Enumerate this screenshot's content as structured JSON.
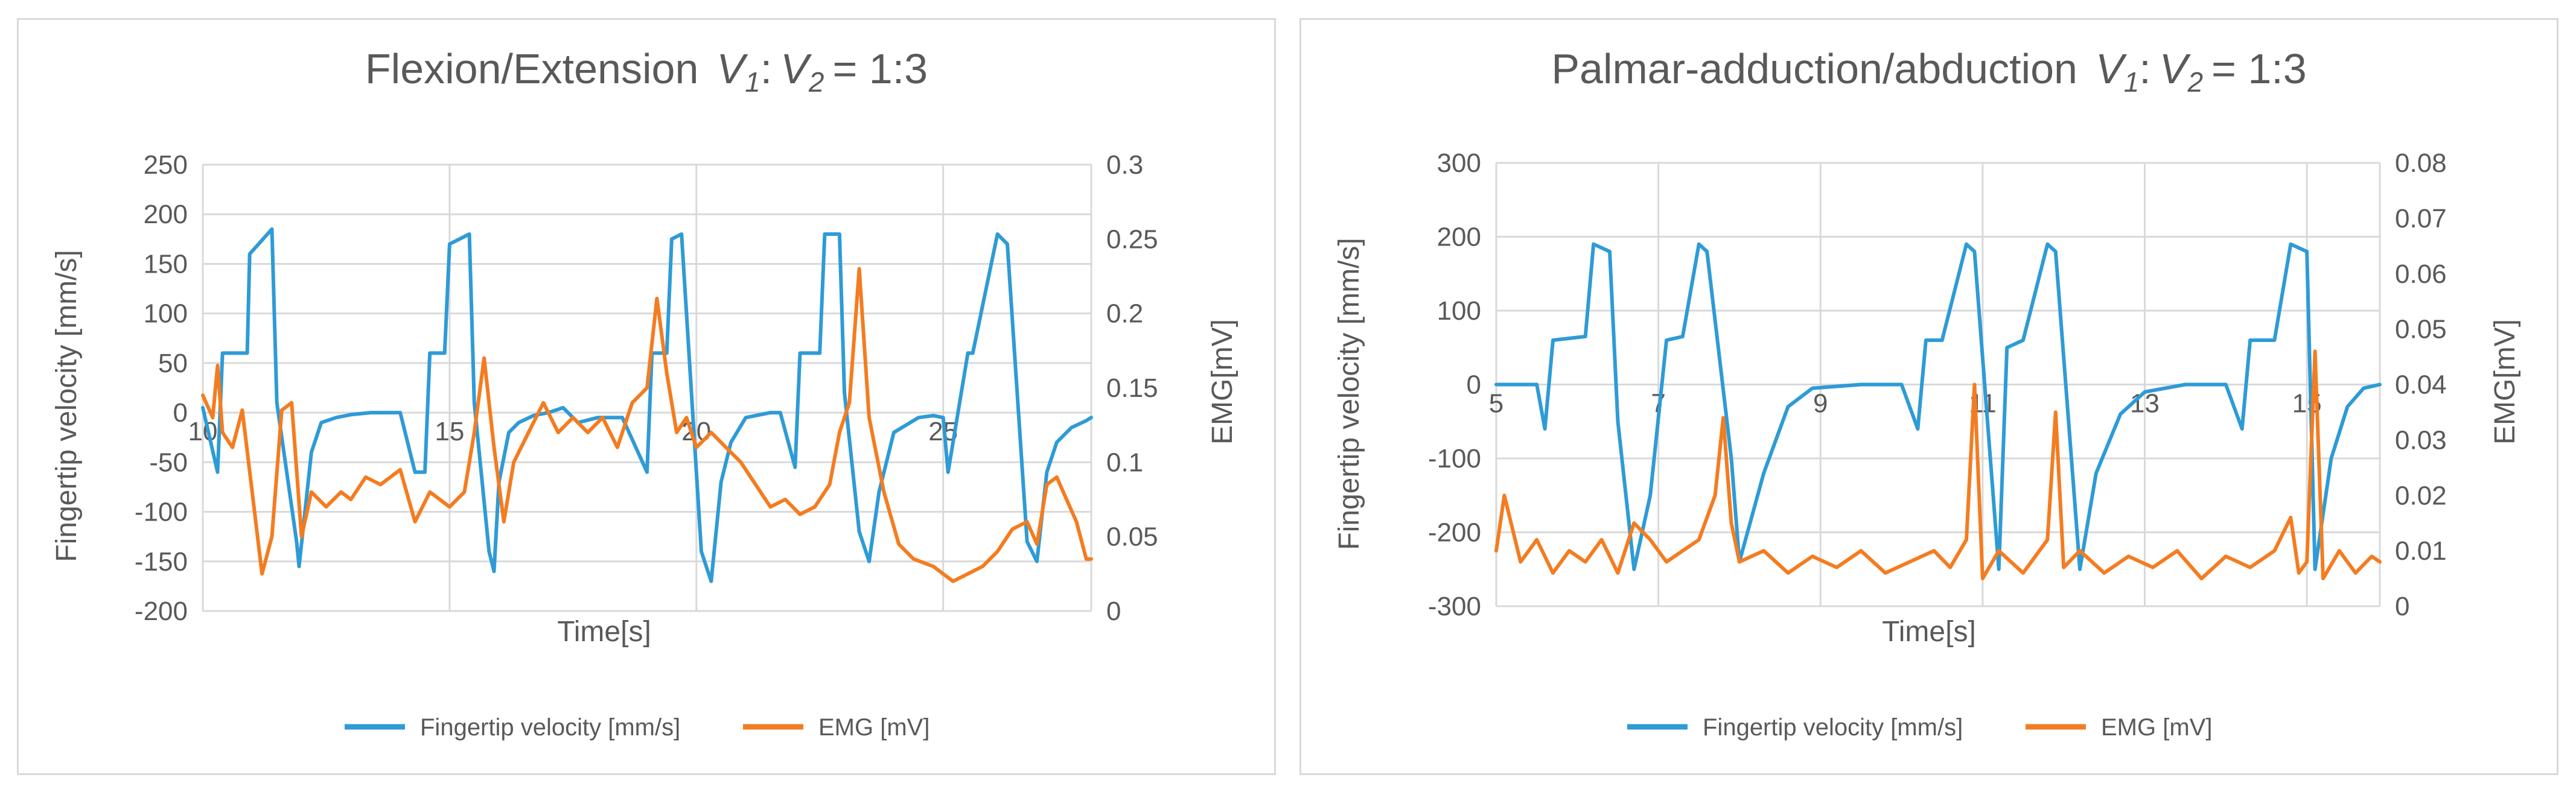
{
  "chart_data": [
    {
      "type": "line",
      "title": {
        "main": "Flexion/Extension",
        "v1": "V",
        "v1_sub": "1",
        "colon": ":",
        "v2": "V",
        "v2_sub": "2",
        "ratio": "=  1:3"
      },
      "xlabel": "Time[s]",
      "ylabel_left": "Fingertip velocity [mm/s]",
      "ylabel_right": "EMG[mV]",
      "xlim": [
        10,
        28
      ],
      "ylim_left": [
        -200,
        250
      ],
      "ylim_right": [
        0,
        0.3
      ],
      "yticks_left": [
        "250",
        "200",
        "150",
        "100",
        "50",
        "0",
        "-50",
        "-100",
        "-150",
        "-200"
      ],
      "yticks_right": [
        "0.3",
        "0.25",
        "0.2",
        "0.15",
        "0.1",
        "0.05",
        "0"
      ],
      "xticks": [
        "10",
        "15",
        "20",
        "25"
      ],
      "legend": [
        "Fingertip velocity [mm/s]",
        "EMG [mV]"
      ],
      "colors": {
        "velocity": "#2e9bd6",
        "emg": "#f47c20"
      },
      "series": [
        {
          "name": "Fingertip velocity [mm/s]",
          "axis": "left",
          "x": [
            10,
            10.3,
            10.4,
            10.9,
            10.95,
            11.4,
            11.5,
            11.9,
            11.95,
            12.2,
            12.4,
            12.7,
            13.0,
            13.4,
            14.0,
            14.3,
            14.5,
            14.6,
            14.9,
            15.0,
            15.4,
            15.5,
            15.8,
            15.9,
            16.0,
            16.2,
            16.4,
            16.7,
            17.0,
            17.3,
            17.6,
            18.0,
            18.5,
            19.0,
            19.1,
            19.4,
            19.5,
            19.7,
            19.9,
            20.1,
            20.3,
            20.5,
            20.7,
            21.0,
            21.5,
            21.7,
            22.0,
            22.1,
            22.5,
            22.6,
            22.9,
            23.0,
            23.3,
            23.5,
            23.7,
            24.0,
            24.5,
            24.8,
            25.0,
            25.1,
            25.5,
            25.6,
            26.1,
            26.3,
            26.5,
            26.7,
            26.9,
            27.1,
            27.3,
            27.6,
            27.9,
            28.0
          ],
          "values": [
            5,
            -60,
            60,
            60,
            160,
            185,
            10,
            -130,
            -155,
            -40,
            -10,
            -5,
            -2,
            0,
            0,
            -60,
            -60,
            60,
            60,
            170,
            180,
            10,
            -140,
            -160,
            -70,
            -20,
            -10,
            -3,
            0,
            5,
            -10,
            -5,
            -5,
            -60,
            60,
            60,
            175,
            180,
            20,
            -140,
            -170,
            -70,
            -30,
            -5,
            0,
            0,
            -55,
            60,
            60,
            180,
            180,
            20,
            -120,
            -150,
            -80,
            -20,
            -5,
            -3,
            -5,
            -60,
            60,
            60,
            180,
            170,
            20,
            -130,
            -150,
            -60,
            -30,
            -15,
            -8,
            -5
          ]
        },
        {
          "name": "EMG [mV]",
          "axis": "right",
          "x": [
            10,
            10.2,
            10.3,
            10.4,
            10.6,
            10.8,
            11.0,
            11.2,
            11.4,
            11.6,
            11.8,
            12.0,
            12.2,
            12.5,
            12.8,
            13.0,
            13.3,
            13.6,
            14.0,
            14.3,
            14.6,
            15.0,
            15.3,
            15.5,
            15.7,
            15.9,
            16.1,
            16.3,
            16.6,
            16.9,
            17.2,
            17.5,
            17.8,
            18.1,
            18.4,
            18.7,
            19.0,
            19.2,
            19.4,
            19.6,
            19.8,
            20.0,
            20.3,
            20.6,
            20.9,
            21.2,
            21.5,
            21.8,
            22.1,
            22.4,
            22.7,
            22.9,
            23.1,
            23.3,
            23.5,
            23.8,
            24.1,
            24.4,
            24.8,
            25.2,
            25.5,
            25.8,
            26.1,
            26.4,
            26.7,
            26.9,
            27.1,
            27.3,
            27.5,
            27.7,
            27.9,
            28.0
          ],
          "values": [
            0.145,
            0.13,
            0.165,
            0.12,
            0.11,
            0.135,
            0.08,
            0.025,
            0.05,
            0.135,
            0.14,
            0.05,
            0.08,
            0.07,
            0.08,
            0.075,
            0.09,
            0.085,
            0.095,
            0.06,
            0.08,
            0.07,
            0.08,
            0.12,
            0.17,
            0.11,
            0.06,
            0.1,
            0.12,
            0.14,
            0.12,
            0.13,
            0.12,
            0.13,
            0.11,
            0.14,
            0.15,
            0.21,
            0.16,
            0.12,
            0.13,
            0.11,
            0.12,
            0.11,
            0.1,
            0.085,
            0.07,
            0.075,
            0.065,
            0.07,
            0.085,
            0.12,
            0.14,
            0.23,
            0.13,
            0.08,
            0.045,
            0.035,
            0.03,
            0.02,
            0.025,
            0.03,
            0.04,
            0.055,
            0.06,
            0.045,
            0.085,
            0.09,
            0.075,
            0.06,
            0.035,
            0.035
          ]
        }
      ]
    },
    {
      "type": "line",
      "title": {
        "main": "Palmar-adduction/abduction",
        "v1": "V",
        "v1_sub": "1",
        "colon": ":",
        "v2": "V",
        "v2_sub": "2",
        "ratio": "=  1:3"
      },
      "xlabel": "Time[s]",
      "ylabel_left": "Fingertip velocity [mm/s]",
      "ylabel_right": "EMG[mV]",
      "xlim": [
        5,
        15.9
      ],
      "ylim_left": [
        -300,
        300
      ],
      "ylim_right": [
        0,
        0.08
      ],
      "yticks_left": [
        "300",
        "200",
        "100",
        "0",
        "-100",
        "-200",
        "-300"
      ],
      "yticks_right": [
        "0.08",
        "0.07",
        "0.06",
        "0.05",
        "0.04",
        "0.03",
        "0.02",
        "0.01",
        "0"
      ],
      "xticks": [
        "5",
        "7",
        "9",
        "11",
        "13",
        "15"
      ],
      "legend": [
        "Fingertip velocity [mm/s]",
        "EMG [mV]"
      ],
      "colors": {
        "velocity": "#2e9bd6",
        "emg": "#f47c20"
      },
      "series": [
        {
          "name": "Fingertip velocity [mm/s]",
          "axis": "left",
          "x": [
            5,
            5.5,
            5.6,
            5.7,
            6.1,
            6.2,
            6.4,
            6.5,
            6.7,
            6.9,
            7.1,
            7.3,
            7.5,
            7.6,
            7.9,
            8.0,
            8.3,
            8.6,
            8.9,
            9.5,
            10.0,
            10.2,
            10.3,
            10.5,
            10.8,
            10.9,
            11.2,
            11.3,
            11.5,
            11.8,
            11.9,
            12.2,
            12.4,
            12.7,
            13.0,
            13.5,
            14.0,
            14.2,
            14.3,
            14.6,
            14.8,
            15.0,
            15.1,
            15.3,
            15.5,
            15.7,
            15.9
          ],
          "values": [
            0,
            0,
            -60,
            60,
            65,
            190,
            180,
            -50,
            -250,
            -150,
            60,
            65,
            190,
            180,
            -100,
            -240,
            -120,
            -30,
            -5,
            0,
            0,
            -60,
            60,
            60,
            190,
            180,
            -250,
            50,
            60,
            190,
            180,
            -250,
            -120,
            -40,
            -10,
            0,
            0,
            -60,
            60,
            60,
            190,
            180,
            -250,
            -100,
            -30,
            -5,
            0
          ]
        },
        {
          "name": "EMG [mV]",
          "axis": "right",
          "x": [
            5,
            5.1,
            5.3,
            5.5,
            5.7,
            5.9,
            6.1,
            6.3,
            6.5,
            6.7,
            6.9,
            7.1,
            7.3,
            7.5,
            7.7,
            7.8,
            7.9,
            8.0,
            8.3,
            8.6,
            8.9,
            9.2,
            9.5,
            9.8,
            10.1,
            10.4,
            10.6,
            10.8,
            10.9,
            11.0,
            11.2,
            11.5,
            11.8,
            11.9,
            12.0,
            12.2,
            12.5,
            12.8,
            13.1,
            13.4,
            13.7,
            14.0,
            14.3,
            14.6,
            14.8,
            14.9,
            15.0,
            15.1,
            15.2,
            15.4,
            15.6,
            15.8,
            15.9
          ],
          "values": [
            0.01,
            0.02,
            0.008,
            0.012,
            0.006,
            0.01,
            0.008,
            0.012,
            0.006,
            0.015,
            0.012,
            0.008,
            0.01,
            0.012,
            0.02,
            0.034,
            0.015,
            0.008,
            0.01,
            0.006,
            0.009,
            0.007,
            0.01,
            0.006,
            0.008,
            0.01,
            0.007,
            0.012,
            0.04,
            0.005,
            0.01,
            0.006,
            0.012,
            0.035,
            0.007,
            0.01,
            0.006,
            0.009,
            0.007,
            0.01,
            0.005,
            0.009,
            0.007,
            0.01,
            0.016,
            0.006,
            0.008,
            0.046,
            0.005,
            0.01,
            0.006,
            0.009,
            0.008
          ]
        }
      ]
    }
  ]
}
